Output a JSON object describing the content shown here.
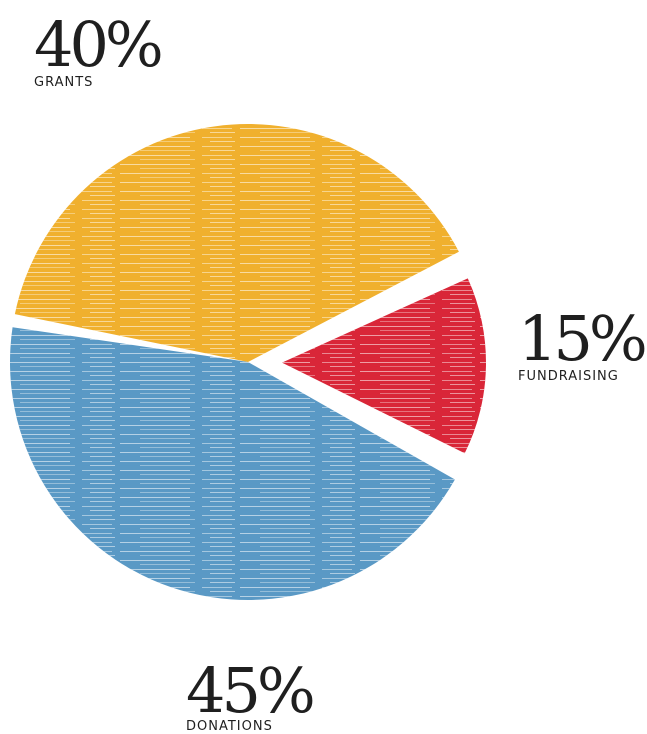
{
  "chart_data": {
    "type": "pie",
    "slices": [
      {
        "category": "GRANTS",
        "value": 40,
        "label": "40%",
        "color": "#F0B02E"
      },
      {
        "category": "FUNDRAISING",
        "value": 15,
        "label": "15%",
        "color": "#D92638"
      },
      {
        "category": "DONATIONS",
        "value": 45,
        "label": "45%",
        "color": "#5A99C5"
      }
    ],
    "exploded": "FUNDRAISING",
    "texture": "horizontal brush streaks"
  }
}
